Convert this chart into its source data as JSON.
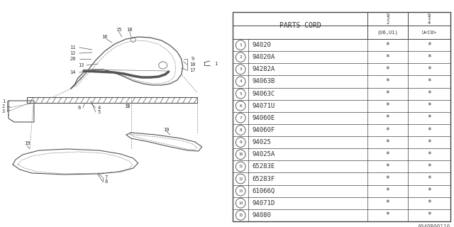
{
  "catalog_code": "A940B00110",
  "bg_color": "#ffffff",
  "rows": [
    [
      "1",
      "94020",
      "*",
      "*"
    ],
    [
      "2",
      "94020A",
      "*",
      "*"
    ],
    [
      "3",
      "94282A",
      "*",
      "*"
    ],
    [
      "4",
      "94063B",
      "*",
      "*"
    ],
    [
      "5",
      "94063C",
      "*",
      "*"
    ],
    [
      "6",
      "94071U",
      "*",
      "*"
    ],
    [
      "7",
      "94060E",
      "*",
      "*"
    ],
    [
      "8",
      "94060F",
      "*",
      "*"
    ],
    [
      "9",
      "94025",
      "*",
      "*"
    ],
    [
      "10",
      "94025A",
      "*",
      "*"
    ],
    [
      "11",
      "65283E",
      "*",
      "*"
    ],
    [
      "12",
      "65283F",
      "*",
      "*"
    ],
    [
      "13",
      "61066Q",
      "*",
      "*"
    ],
    [
      "14",
      "94071D",
      "*",
      "*"
    ],
    [
      "15",
      "94080",
      "*",
      "*"
    ]
  ],
  "line_color": "#444444",
  "text_color": "#333333",
  "draw_color": "#666666"
}
